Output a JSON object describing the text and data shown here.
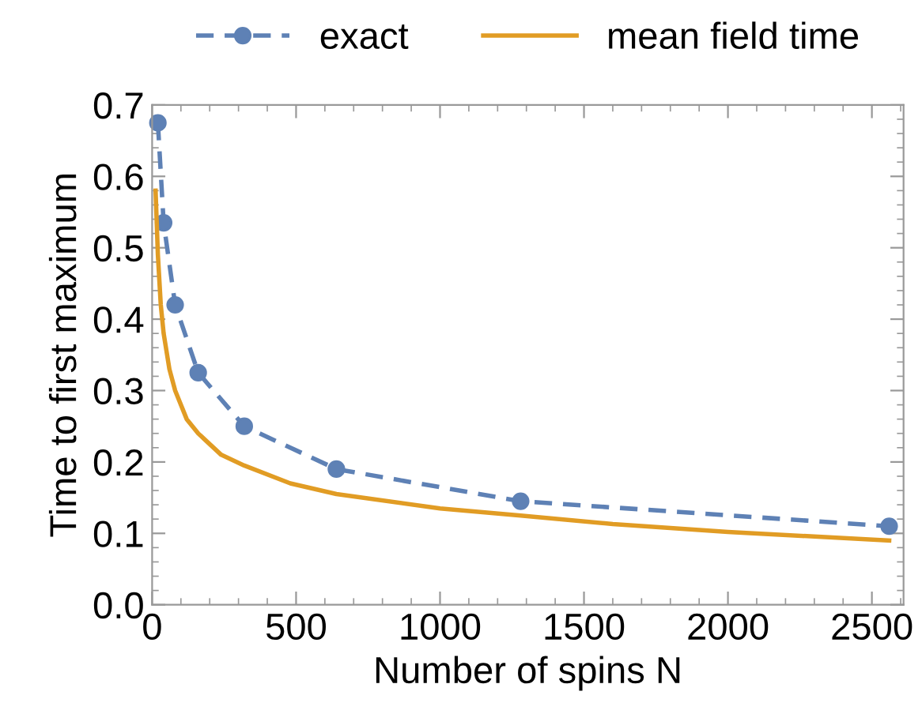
{
  "chart_data": {
    "type": "line",
    "xlabel": "Number of spins N",
    "ylabel": "Time to first maximum",
    "xlim": [
      0,
      2610
    ],
    "xticks": [
      0,
      500,
      1000,
      1500,
      2000,
      2500
    ],
    "ylim": [
      0,
      0.7
    ],
    "yticks": [
      {
        "value": 0,
        "label": "0.0"
      },
      0.1,
      0.2,
      0.3,
      0.4,
      0.5,
      0.6,
      0.7
    ],
    "grid": false,
    "legend": "top",
    "series": [
      {
        "name": "exact",
        "color": "#5e81b5",
        "marker": "circle",
        "line_style": "dashed",
        "x": [
          20,
          40,
          80,
          160,
          320,
          640,
          1280,
          2560
        ],
        "values": [
          0.675,
          0.535,
          0.42,
          0.325,
          0.25,
          0.19,
          0.145,
          0.11
        ]
      },
      {
        "name": "mean field time",
        "color": "#e19c24",
        "marker": "none",
        "line_style": "solid",
        "x": [
          12,
          20,
          30,
          40,
          60,
          80,
          120,
          160,
          240,
          320,
          480,
          640,
          1000,
          1280,
          1600,
          2000,
          2560
        ],
        "values": [
          0.58,
          0.49,
          0.42,
          0.38,
          0.33,
          0.3,
          0.26,
          0.24,
          0.21,
          0.195,
          0.17,
          0.155,
          0.135,
          0.125,
          0.113,
          0.102,
          0.09
        ]
      }
    ]
  }
}
